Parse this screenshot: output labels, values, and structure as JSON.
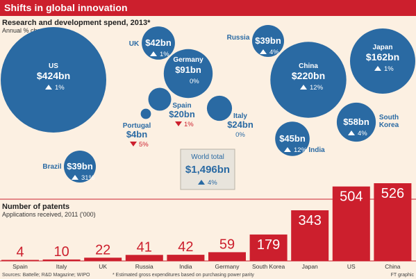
{
  "header": {
    "title": "Shifts in global innovation"
  },
  "chart_data": [
    {
      "type": "bubble",
      "title": "Research and development spend, 2013*",
      "subtitle": "Annual % change",
      "unit": "$bn",
      "items": [
        {
          "name": "US",
          "value": 424,
          "value_label": "$424bn",
          "change": 1,
          "change_label": "1%"
        },
        {
          "name": "Brazil",
          "value": 39,
          "value_label": "$39bn",
          "change": 31,
          "change_label": "31%"
        },
        {
          "name": "UK",
          "value": 42,
          "value_label": "$42bn",
          "change": 1,
          "change_label": "1%"
        },
        {
          "name": "Germany",
          "value": 91,
          "value_label": "$91bn",
          "change": 0,
          "change_label": "0%"
        },
        {
          "name": "Portugal",
          "value": 4,
          "value_label": "$4bn",
          "change": -5,
          "change_label": "5%"
        },
        {
          "name": "Spain",
          "value": 20,
          "value_label": "$20bn",
          "change": -1,
          "change_label": "1%"
        },
        {
          "name": "Italy",
          "value": 24,
          "value_label": "$24bn",
          "change": 0,
          "change_label": "0%"
        },
        {
          "name": "Russia",
          "value": 39,
          "value_label": "$39bn",
          "change": 4,
          "change_label": "4%"
        },
        {
          "name": "China",
          "value": 220,
          "value_label": "$220bn",
          "change": 12,
          "change_label": "12%"
        },
        {
          "name": "Japan",
          "value": 162,
          "value_label": "$162bn",
          "change": 1,
          "change_label": "1%"
        },
        {
          "name": "India",
          "value": 45,
          "value_label": "$45bn",
          "change": 12,
          "change_label": "12%"
        },
        {
          "name": "South Korea",
          "value": 58,
          "value_label": "$58bn",
          "change": 4,
          "change_label": "4%"
        }
      ],
      "total": {
        "name": "World total",
        "value": 1496,
        "value_label": "$1,496bn",
        "change": 4,
        "change_label": "4%"
      }
    },
    {
      "type": "bar",
      "title": "Number of patents",
      "subtitle": "Applications received, 2011 ('000)",
      "categories": [
        "Spain",
        "Italy",
        "UK",
        "Russia",
        "India",
        "Germany",
        "South Korea",
        "Japan",
        "US",
        "China"
      ],
      "values": [
        4,
        10,
        22,
        41,
        42,
        59,
        179,
        343,
        504,
        526
      ]
    }
  ],
  "footer": {
    "sources": "Sources: Battelle; R&D Magazine; WIPO",
    "note": "* Estimated gross expenditures based on purchasing power parity",
    "credit": "FT graphic"
  },
  "colors": {
    "header": "#cc1f2d",
    "bubble": "#2a6aa3",
    "bar": "#cc1f2d",
    "background": "#fcf0e2",
    "total_box": "#e8e4dc"
  }
}
